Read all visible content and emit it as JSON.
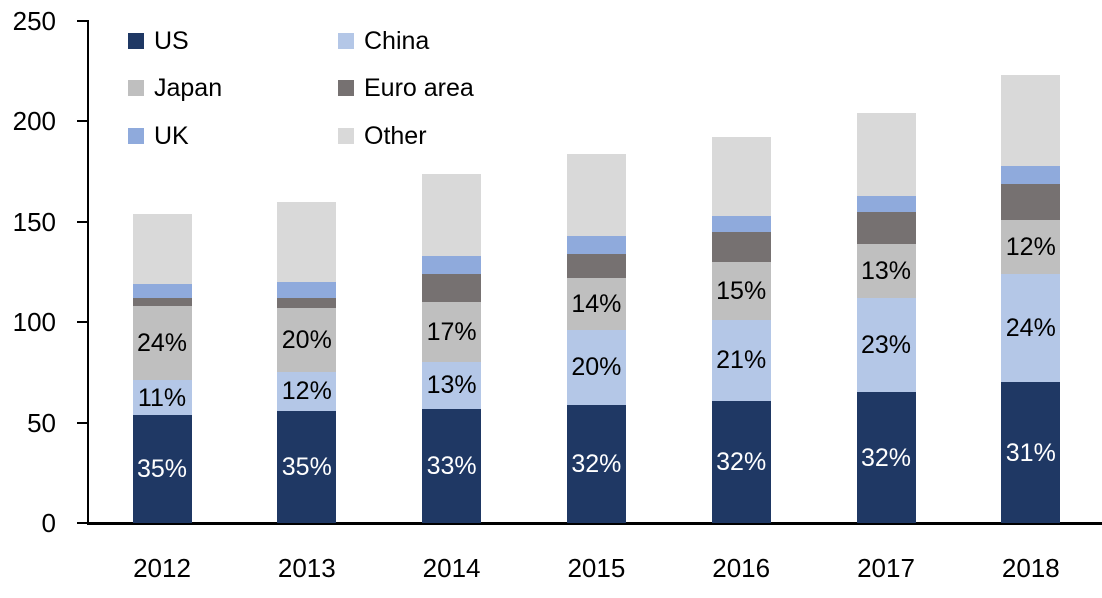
{
  "chart_data": {
    "type": "bar",
    "stacked": true,
    "title": "",
    "xlabel": "",
    "ylabel": "",
    "categories": [
      "2012",
      "2013",
      "2014",
      "2015",
      "2016",
      "2017",
      "2018"
    ],
    "series": [
      {
        "name": "US",
        "color": "#1F3864",
        "values": [
          54,
          56,
          57,
          59,
          61,
          65,
          70
        ],
        "labels": [
          "35%",
          "35%",
          "33%",
          "32%",
          "32%",
          "32%",
          "31%"
        ],
        "label_color": "#FFFFFF"
      },
      {
        "name": "China",
        "color": "#B4C7E7",
        "values": [
          17,
          19,
          23,
          37,
          40,
          47,
          54
        ],
        "labels": [
          "11%",
          "12%",
          "13%",
          "20%",
          "21%",
          "23%",
          "24%"
        ],
        "label_color": "#000000"
      },
      {
        "name": "Japan",
        "color": "#BFBFBF",
        "values": [
          37,
          32,
          30,
          26,
          29,
          27,
          27
        ],
        "labels": [
          "24%",
          "20%",
          "17%",
          "14%",
          "15%",
          "13%",
          "12%"
        ],
        "label_color": "#000000"
      },
      {
        "name": "Euro area",
        "color": "#767171",
        "values": [
          4,
          5,
          14,
          12,
          15,
          16,
          18
        ]
      },
      {
        "name": "UK",
        "color": "#8FAADC",
        "values": [
          7,
          8,
          9,
          9,
          8,
          8,
          9
        ]
      },
      {
        "name": "Other",
        "color": "#D9D9D9",
        "values": [
          35,
          40,
          41,
          41,
          39,
          41,
          45
        ]
      }
    ],
    "totals": [
      154,
      160,
      174,
      184,
      192,
      204,
      223
    ],
    "ylim": [
      0,
      250
    ],
    "yticks": [
      0,
      50,
      100,
      150,
      200,
      250
    ],
    "grid": false,
    "legend": {
      "position": "top-left",
      "columns": 2,
      "items": [
        "US",
        "China",
        "Japan",
        "Euro area",
        "UK",
        "Other"
      ]
    },
    "axis_color": "#000000",
    "background_color": "#FFFFFF"
  }
}
